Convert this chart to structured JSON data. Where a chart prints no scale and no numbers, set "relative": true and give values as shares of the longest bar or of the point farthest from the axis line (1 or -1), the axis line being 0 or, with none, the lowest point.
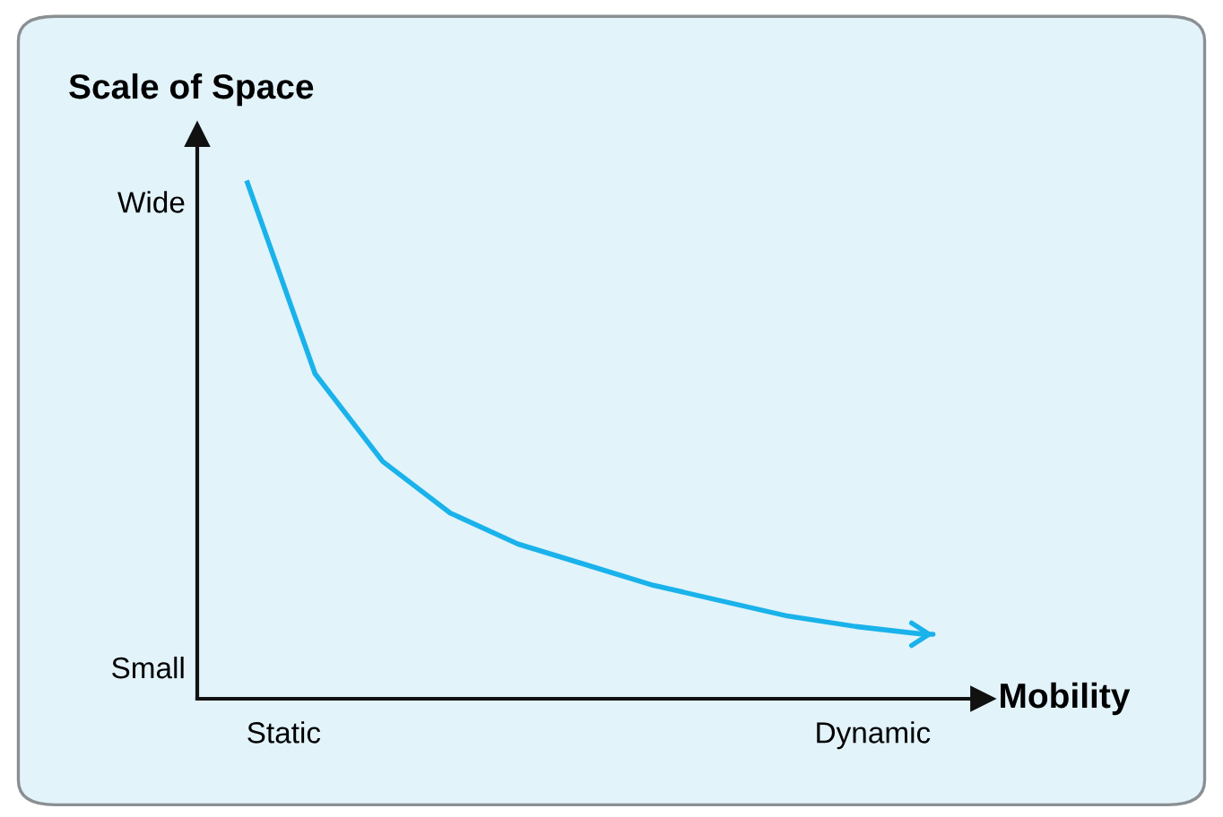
{
  "chart_data": {
    "type": "line",
    "relative": true,
    "xlabel": "Mobility",
    "ylabel": "Scale of Space",
    "categories": [
      null,
      null,
      null,
      null,
      null,
      null,
      null,
      null,
      null,
      null,
      null
    ],
    "series": [
      {
        "color": "#1ab2ea",
        "values": [
          1.0,
          0.63,
          0.46,
          0.36,
          0.3,
          0.26,
          0.22,
          0.19,
          0.16,
          0.14,
          0.125
        ]
      }
    ],
    "annotations": [
      "Wide",
      "Small",
      "Static",
      "Dynamic"
    ],
    "legend": false,
    "marker": "none",
    "line_style": "solid"
  }
}
